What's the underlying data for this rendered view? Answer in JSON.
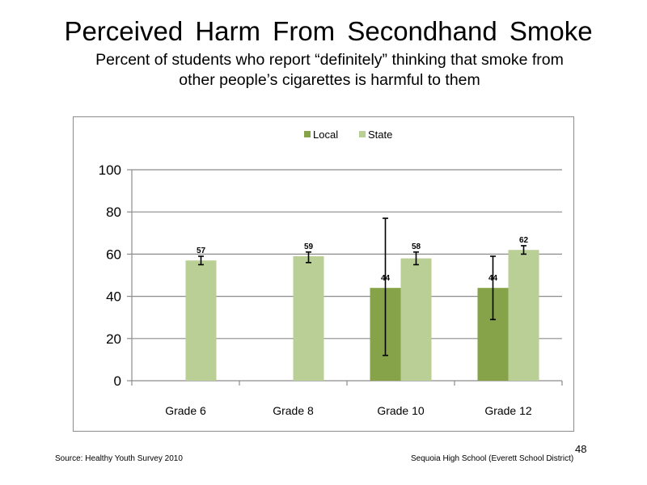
{
  "slide": {
    "title": "Perceived  Harm From Secondhand  Smoke",
    "subtitle_line1": "Percent of students who report “definitely” thinking that smoke from",
    "subtitle_line2": "other people’s cigarettes is harmful to them",
    "source": "Source: Healthy Youth Survey 2010",
    "school": "Sequoia High School (Everett School District)",
    "page_number": "48"
  },
  "colors": {
    "local": "#86a34a",
    "state": "#b9cf95",
    "axis": "#8c8c8c",
    "gridline": "#8c8c8c"
  },
  "chart_data": {
    "type": "bar",
    "title": "",
    "xlabel": "",
    "ylabel": "",
    "categories": [
      "Grade 6",
      "Grade 8",
      "Grade 10",
      "Grade 12"
    ],
    "ylim": [
      0,
      100
    ],
    "yticks": [
      0,
      20,
      40,
      60,
      80,
      100
    ],
    "grid": true,
    "legend_position": "top",
    "series": [
      {
        "name": "Local",
        "values": [
          null,
          null,
          44,
          44
        ],
        "data_labels": [
          "",
          "",
          "44",
          "44"
        ],
        "error_low": [
          null,
          null,
          12,
          29
        ],
        "error_high": [
          null,
          null,
          77,
          59
        ]
      },
      {
        "name": "State",
        "values": [
          57,
          59,
          58,
          62
        ],
        "data_labels": [
          "57",
          "59",
          "58",
          "62"
        ],
        "error_low": [
          55,
          56,
          55,
          60
        ],
        "error_high": [
          59,
          61,
          61,
          64
        ]
      }
    ]
  }
}
